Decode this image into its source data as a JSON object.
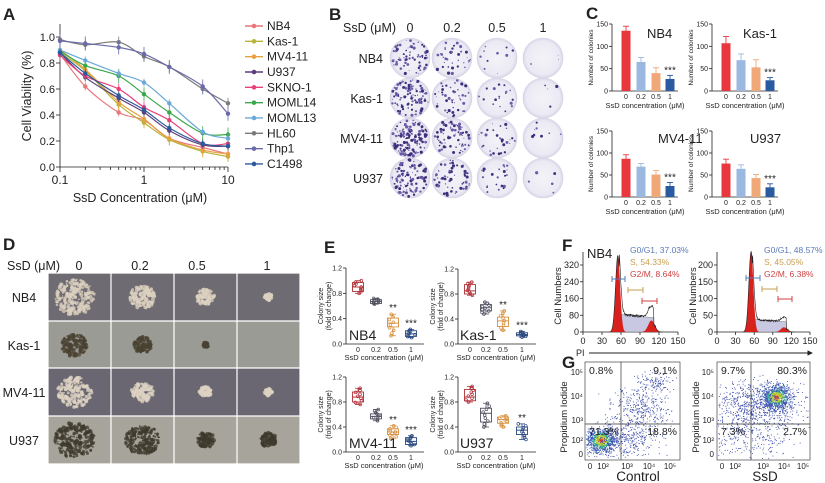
{
  "panel_labels": {
    "A": "A",
    "B": "B",
    "C": "C",
    "D": "D",
    "E": "E",
    "F": "F",
    "G": "G"
  },
  "images": {
    "B": {
      "header": "SsD (μM)",
      "columns": [
        "0",
        "0.2",
        "0.5",
        "1"
      ],
      "rows": [
        "NB4",
        "Kas-1",
        "MV4-11",
        "U937"
      ]
    },
    "D": {
      "header": "SsD (μM)",
      "columns": [
        "0",
        "0.2",
        "0.5",
        "1"
      ],
      "rows": [
        "NB4",
        "Kas-1",
        "MV4-11",
        "U937"
      ]
    }
  },
  "chart_data": [
    {
      "panel": "A",
      "type": "line",
      "xscale": "log",
      "xlabel": "SsD Concentration (μM)",
      "ylabel": "Cell Viability (%)",
      "xlim": [
        0.1,
        10
      ],
      "ylim": [
        0,
        1.0
      ],
      "xticks": [
        "0.1",
        "1",
        "10"
      ],
      "yticks": [
        "0.0",
        "0.2",
        "0.4",
        "0.6",
        "0.8",
        "1.0"
      ],
      "legend": "right",
      "x": [
        0.1,
        0.2,
        0.5,
        1,
        2,
        5,
        10
      ],
      "series": [
        {
          "name": "NB4",
          "color": "#e8777a",
          "values": [
            0.87,
            0.62,
            0.42,
            0.36,
            0.22,
            0.15,
            0.1
          ]
        },
        {
          "name": "Kas-1",
          "color": "#b8b43a",
          "values": [
            0.88,
            0.74,
            0.48,
            0.34,
            0.21,
            0.12,
            0.08
          ]
        },
        {
          "name": "MV4-11",
          "color": "#e8a040",
          "values": [
            0.9,
            0.75,
            0.5,
            0.37,
            0.22,
            0.13,
            0.1
          ]
        },
        {
          "name": "U937",
          "color": "#5a3d7a",
          "values": [
            0.88,
            0.69,
            0.53,
            0.42,
            0.28,
            0.17,
            0.16
          ]
        },
        {
          "name": "SKNO-1",
          "color": "#e8407a",
          "values": [
            0.86,
            0.7,
            0.6,
            0.46,
            0.36,
            0.18,
            0.18
          ]
        },
        {
          "name": "MOML14",
          "color": "#3aa84a",
          "values": [
            0.89,
            0.78,
            0.7,
            0.56,
            0.42,
            0.26,
            0.25
          ]
        },
        {
          "name": "MOML13",
          "color": "#6aa8d8",
          "values": [
            0.9,
            0.82,
            0.72,
            0.65,
            0.49,
            0.27,
            0.22
          ]
        },
        {
          "name": "HL60",
          "color": "#7a7a7a",
          "values": [
            0.98,
            0.94,
            0.96,
            0.85,
            0.77,
            0.6,
            0.49
          ]
        },
        {
          "name": "Thp1",
          "color": "#6a6aa8",
          "values": [
            0.97,
            0.95,
            0.92,
            0.87,
            0.77,
            0.62,
            0.41
          ]
        },
        {
          "name": "C1498",
          "color": "#2a5a9a",
          "values": [
            0.88,
            0.72,
            0.55,
            0.44,
            0.3,
            0.18,
            0.16
          ]
        }
      ]
    },
    {
      "panel": "C",
      "type": "bar",
      "xlabel": "SsD concentration (μM)",
      "ylabel": "Number of colonies",
      "categories": [
        "0",
        "0.2",
        "0.5",
        "1"
      ],
      "ylim": [
        0,
        150
      ],
      "yticks": [
        "0",
        "50",
        "100",
        "150"
      ],
      "colors": [
        "#e8383d",
        "#9ab8e0",
        "#f0a878",
        "#2a5aa0"
      ],
      "subplots": [
        {
          "title": "NB4",
          "values": [
            135,
            65,
            40,
            27
          ],
          "errors": [
            10,
            10,
            12,
            8
          ],
          "significance": [
            "",
            "",
            "",
            "***"
          ]
        },
        {
          "title": "Kas-1",
          "values": [
            107,
            69,
            53,
            24
          ],
          "errors": [
            15,
            14,
            17,
            6
          ],
          "significance": [
            "",
            "",
            "",
            "***"
          ]
        },
        {
          "title": "MV4-11",
          "values": [
            87,
            69,
            51,
            25
          ],
          "errors": [
            9,
            7,
            9,
            8
          ],
          "significance": [
            "",
            "",
            "",
            "***"
          ]
        },
        {
          "title": "U937",
          "values": [
            76,
            64,
            43,
            22
          ],
          "errors": [
            10,
            9,
            8,
            8
          ],
          "significance": [
            "",
            "",
            "",
            "***"
          ]
        }
      ]
    },
    {
      "panel": "E",
      "type": "box",
      "xlabel": "SsD concentration (μM)",
      "ylabel_line1": "Colony size",
      "ylabel_line2": "(fold of change)",
      "categories": [
        "0",
        "0.2",
        "0.5",
        "1"
      ],
      "ylim": [
        0,
        1.2
      ],
      "yticks": [
        "0.0",
        "0.4",
        "0.8",
        "1.2"
      ],
      "colors": [
        "#b03038",
        "#505060",
        "#d89040",
        "#2a4a80"
      ],
      "subplots": [
        {
          "title": "NB4",
          "boxes": [
            {
              "min": 0.8,
              "q1": 0.83,
              "median": 0.9,
              "q3": 0.97,
              "max": 1.0
            },
            {
              "min": 0.63,
              "q1": 0.64,
              "median": 0.67,
              "q3": 0.7,
              "max": 0.72
            },
            {
              "min": 0.13,
              "q1": 0.27,
              "median": 0.33,
              "q3": 0.41,
              "max": 0.47
            },
            {
              "min": 0.1,
              "q1": 0.12,
              "median": 0.16,
              "q3": 0.21,
              "max": 0.23
            }
          ],
          "significance": [
            "",
            "",
            "**",
            "***"
          ]
        },
        {
          "title": "Kas-1",
          "boxes": [
            {
              "min": 0.78,
              "q1": 0.8,
              "median": 0.85,
              "q3": 0.95,
              "max": 0.99
            },
            {
              "min": 0.48,
              "q1": 0.53,
              "median": 0.58,
              "q3": 0.63,
              "max": 0.67
            },
            {
              "min": 0.22,
              "q1": 0.28,
              "median": 0.37,
              "q3": 0.43,
              "max": 0.53
            },
            {
              "min": 0.11,
              "q1": 0.13,
              "median": 0.15,
              "q3": 0.18,
              "max": 0.2
            }
          ],
          "significance": [
            "",
            "",
            "**",
            "***"
          ]
        },
        {
          "title": "MV4-11",
          "boxes": [
            {
              "min": 0.76,
              "q1": 0.8,
              "median": 0.88,
              "q3": 0.96,
              "max": 1.02
            },
            {
              "min": 0.5,
              "q1": 0.53,
              "median": 0.57,
              "q3": 0.61,
              "max": 0.68
            },
            {
              "min": 0.22,
              "q1": 0.28,
              "median": 0.32,
              "q3": 0.37,
              "max": 0.42
            },
            {
              "min": 0.1,
              "q1": 0.12,
              "median": 0.17,
              "q3": 0.23,
              "max": 0.26
            }
          ],
          "significance": [
            "",
            "",
            "**",
            "***"
          ]
        },
        {
          "title": "U937",
          "boxes": [
            {
              "min": 0.8,
              "q1": 0.82,
              "median": 0.88,
              "q3": 1.0,
              "max": 1.05
            },
            {
              "min": 0.4,
              "q1": 0.48,
              "median": 0.62,
              "q3": 0.7,
              "max": 0.78
            },
            {
              "min": 0.4,
              "q1": 0.46,
              "median": 0.52,
              "q3": 0.56,
              "max": 0.58
            },
            {
              "min": 0.2,
              "q1": 0.28,
              "median": 0.35,
              "q3": 0.4,
              "max": 0.45
            }
          ],
          "significance": [
            "",
            "",
            "",
            "**"
          ]
        }
      ]
    },
    {
      "panel": "F",
      "type": "area",
      "sample": "NB4",
      "xlabel": "PI",
      "ylabel": "Cell Numbers",
      "xticks": [
        "0",
        "30",
        "60",
        "90",
        "120",
        "150"
      ],
      "phase_colors": [
        "#5a7ab8",
        "#c8a050",
        "#d04040"
      ],
      "subplots": [
        {
          "yticks": [
            "0",
            "80",
            "160",
            "240",
            "320"
          ],
          "phases": [
            "G0/G1, 37.03%",
            "S, 54.33%",
            "G2/M, 8.64%"
          ]
        },
        {
          "yticks": [
            "0",
            "50",
            "100",
            "150",
            "200"
          ],
          "phases": [
            "G0/G1, 48.57%",
            "S, 45.05%",
            "G2/M, 6.38%"
          ]
        }
      ]
    },
    {
      "panel": "G",
      "type": "scatter",
      "ylabel": "Propidium Iodide",
      "xticks": [
        "0",
        "10²",
        "10³",
        "10⁴",
        "10⁵"
      ],
      "yticks": [
        "10⁵",
        "10⁴",
        "10³",
        "10²",
        "0"
      ],
      "subplots": [
        {
          "title": "Control",
          "quadrants": {
            "ul": "0.8%",
            "ur": "9.1%",
            "ll": "71.3%",
            "lr": "18.8%"
          }
        },
        {
          "title": "SsD",
          "quadrants": {
            "ul": "9.7%",
            "ur": "80.3%",
            "ll": "7.3%",
            "lr": "2.7%"
          }
        }
      ]
    }
  ]
}
